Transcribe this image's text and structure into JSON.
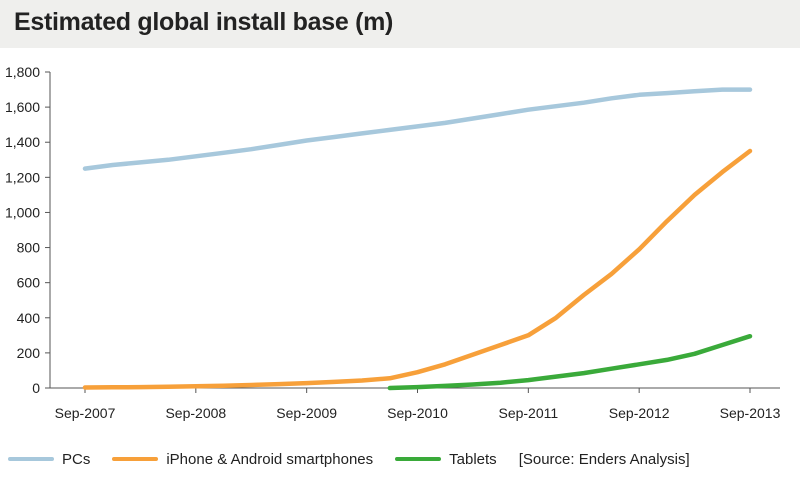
{
  "header": {
    "title": "Estimated global install base (m)"
  },
  "legend": {
    "items": [
      {
        "label": "PCs",
        "color": "#a7c8dc"
      },
      {
        "label": "iPhone & Android smartphones",
        "color": "#f7a03a"
      },
      {
        "label": "Tablets",
        "color": "#3aaa3a"
      }
    ],
    "source": "[Source:  Enders Analysis]"
  },
  "chart_data": {
    "type": "line",
    "title": "Estimated global install base (m)",
    "xlabel": "",
    "ylabel": "",
    "ylim": [
      0,
      1800
    ],
    "y_ticks": [
      0,
      200,
      400,
      600,
      800,
      1000,
      1200,
      1400,
      1600,
      1800
    ],
    "y_tick_labels": [
      "0",
      "200",
      "400",
      "600",
      "800",
      "1,000",
      "1,200",
      "1,400",
      "1,600",
      "1,800"
    ],
    "x_tick_labels": [
      "Sep-2007",
      "Sep-2008",
      "Sep-2009",
      "Sep-2010",
      "Sep-2011",
      "Sep-2012",
      "Sep-2013"
    ],
    "x": [
      "Sep-2007",
      "Dec-2007",
      "Mar-2008",
      "Jun-2008",
      "Sep-2008",
      "Dec-2008",
      "Mar-2009",
      "Jun-2009",
      "Sep-2009",
      "Dec-2009",
      "Mar-2010",
      "Jun-2010",
      "Sep-2010",
      "Dec-2010",
      "Mar-2011",
      "Jun-2011",
      "Sep-2011",
      "Dec-2011",
      "Mar-2012",
      "Jun-2012",
      "Sep-2012",
      "Dec-2012",
      "Mar-2013",
      "Jun-2013",
      "Sep-2013"
    ],
    "grid": false,
    "legend_position": "bottom",
    "series": [
      {
        "name": "PCs",
        "color": "#a7c8dc",
        "values": [
          1250,
          1270,
          1285,
          1300,
          1320,
          1340,
          1360,
          1385,
          1410,
          1430,
          1450,
          1470,
          1490,
          1510,
          1535,
          1560,
          1585,
          1605,
          1625,
          1650,
          1670,
          1680,
          1690,
          1700,
          1700
        ]
      },
      {
        "name": "iPhone & Android smartphones",
        "color": "#f7a03a",
        "values": [
          3,
          4,
          5,
          7,
          10,
          13,
          17,
          22,
          28,
          35,
          43,
          55,
          90,
          135,
          190,
          245,
          300,
          400,
          530,
          650,
          790,
          950,
          1100,
          1230,
          1350
        ]
      },
      {
        "name": "Tablets",
        "color": "#3aaa3a",
        "values": [
          null,
          null,
          null,
          null,
          null,
          null,
          null,
          null,
          null,
          null,
          null,
          0,
          5,
          12,
          20,
          30,
          45,
          65,
          85,
          110,
          135,
          160,
          195,
          245,
          295
        ]
      }
    ]
  }
}
